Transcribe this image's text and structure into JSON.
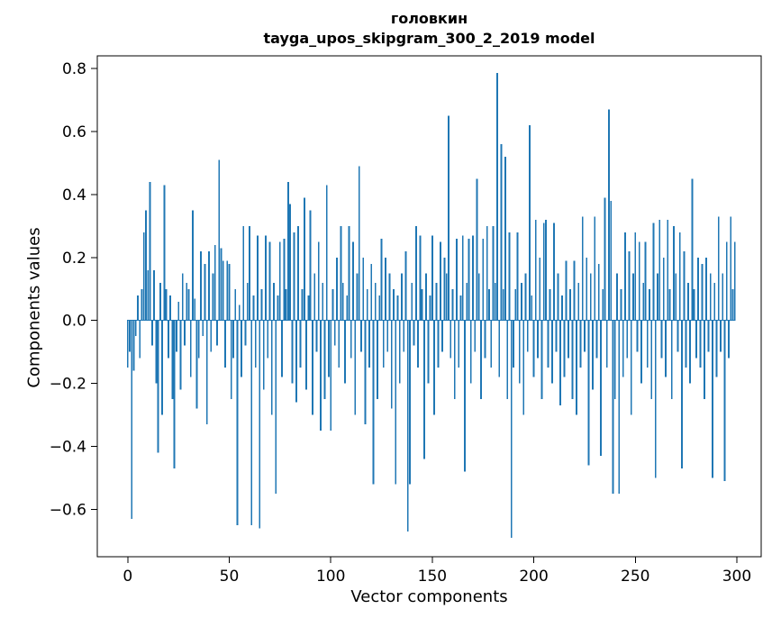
{
  "figure": {
    "title_line1": "головкин",
    "title_line2": "tayga_upos_skipgram_300_2_2019 model",
    "xlabel": "Vector components",
    "ylabel": "Components values"
  },
  "chart_data": {
    "type": "bar",
    "title": "головкин — tayga_upos_skipgram_300_2_2019 model",
    "xlabel": "Vector components",
    "ylabel": "Components values",
    "legend": "none",
    "grid": false,
    "bar_color": "#1f77b4",
    "bar_width": 0.8,
    "x_start": 0,
    "xlim": [
      -15,
      312
    ],
    "ylim": [
      -0.75,
      0.84
    ],
    "xticks": [
      0,
      50,
      100,
      150,
      200,
      250,
      300
    ],
    "yticks": [
      0.8,
      0.6,
      0.4,
      0.2,
      0.0,
      -0.2,
      -0.4,
      -0.6
    ],
    "values": [
      -0.15,
      -0.1,
      -0.63,
      -0.16,
      -0.05,
      0.08,
      -0.12,
      0.1,
      0.28,
      0.35,
      0.16,
      0.44,
      -0.08,
      0.16,
      -0.2,
      -0.42,
      0.12,
      -0.3,
      0.43,
      0.1,
      -0.12,
      0.08,
      -0.25,
      -0.47,
      -0.1,
      0.06,
      -0.22,
      0.15,
      -0.08,
      0.12,
      0.1,
      -0.18,
      0.35,
      0.07,
      -0.28,
      -0.12,
      0.22,
      -0.05,
      0.18,
      -0.33,
      0.22,
      -0.1,
      0.15,
      0.24,
      -0.08,
      0.51,
      0.23,
      0.19,
      -0.15,
      0.19,
      0.18,
      -0.25,
      -0.12,
      0.1,
      -0.65,
      0.05,
      -0.18,
      0.3,
      -0.08,
      0.12,
      0.3,
      -0.65,
      0.08,
      -0.15,
      0.27,
      -0.66,
      0.1,
      -0.22,
      0.27,
      -0.12,
      0.25,
      -0.3,
      0.12,
      -0.55,
      0.08,
      0.25,
      -0.18,
      0.26,
      0.1,
      0.44,
      0.37,
      -0.2,
      0.28,
      -0.26,
      0.3,
      -0.15,
      0.1,
      0.39,
      -0.22,
      0.08,
      0.35,
      -0.3,
      0.15,
      -0.1,
      0.25,
      -0.35,
      0.12,
      -0.25,
      0.43,
      -0.18,
      -0.35,
      0.1,
      -0.08,
      0.2,
      -0.15,
      0.3,
      0.12,
      -0.2,
      0.08,
      0.3,
      -0.12,
      0.25,
      -0.3,
      0.15,
      0.49,
      -0.1,
      0.2,
      -0.33,
      0.1,
      -0.15,
      0.18,
      -0.52,
      0.12,
      -0.25,
      0.08,
      0.26,
      -0.15,
      0.2,
      -0.1,
      0.15,
      -0.28,
      0.1,
      -0.52,
      0.08,
      -0.2,
      0.15,
      -0.1,
      0.22,
      -0.67,
      -0.52,
      0.12,
      -0.08,
      0.3,
      -0.15,
      0.27,
      0.1,
      -0.44,
      0.15,
      -0.2,
      0.08,
      0.27,
      -0.3,
      0.12,
      -0.15,
      0.25,
      -0.1,
      0.2,
      0.15,
      0.65,
      -0.12,
      0.1,
      -0.25,
      0.26,
      -0.15,
      0.08,
      0.27,
      -0.48,
      0.12,
      0.26,
      -0.2,
      0.27,
      -0.1,
      0.45,
      0.15,
      -0.25,
      0.26,
      -0.12,
      0.3,
      0.1,
      -0.15,
      0.3,
      0.12,
      0.785,
      -0.18,
      0.56,
      0.1,
      0.52,
      -0.25,
      0.28,
      -0.69,
      -0.15,
      0.1,
      0.28,
      -0.2,
      0.12,
      -0.3,
      0.15,
      -0.1,
      0.62,
      0.08,
      -0.18,
      0.32,
      -0.12,
      0.2,
      -0.25,
      0.31,
      0.32,
      -0.15,
      0.1,
      -0.2,
      0.31,
      -0.1,
      0.15,
      -0.27,
      0.08,
      -0.18,
      0.19,
      -0.12,
      0.1,
      -0.25,
      0.19,
      -0.3,
      0.12,
      -0.15,
      0.33,
      -0.1,
      0.2,
      -0.46,
      0.15,
      -0.22,
      0.33,
      -0.12,
      0.18,
      -0.43,
      0.1,
      0.39,
      -0.15,
      0.67,
      0.38,
      -0.55,
      -0.25,
      0.15,
      -0.55,
      0.1,
      -0.18,
      0.28,
      -0.12,
      0.22,
      -0.3,
      0.15,
      0.28,
      -0.1,
      0.25,
      -0.2,
      0.12,
      0.25,
      -0.15,
      0.1,
      -0.25,
      0.31,
      -0.5,
      0.15,
      0.32,
      -0.12,
      0.2,
      -0.18,
      0.32,
      0.1,
      -0.25,
      0.3,
      0.15,
      -0.1,
      0.28,
      -0.47,
      0.22,
      -0.15,
      0.12,
      -0.2,
      0.45,
      0.1,
      -0.12,
      0.2,
      -0.15,
      0.18,
      -0.25,
      0.2,
      -0.1,
      0.15,
      -0.5,
      0.12,
      -0.18,
      0.33,
      -0.1,
      0.15,
      -0.51,
      0.25,
      -0.12,
      0.33,
      0.1,
      0.25
    ]
  }
}
